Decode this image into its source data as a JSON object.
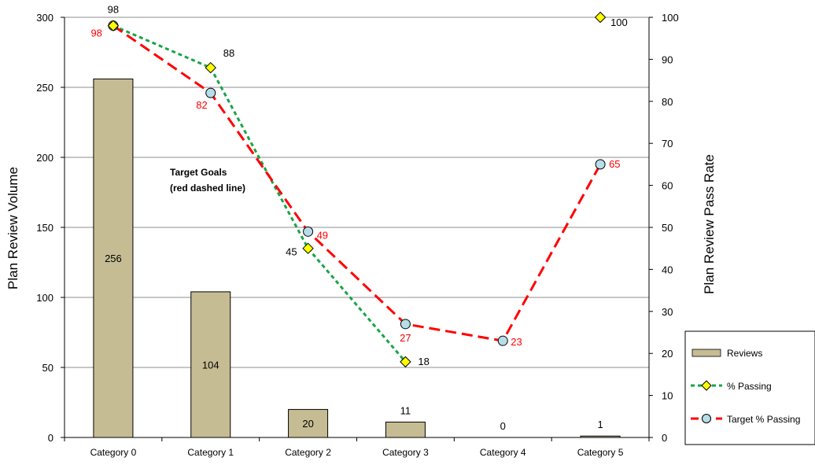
{
  "chart_data": {
    "type": "bar",
    "categories": [
      "Category 0",
      "Category 1",
      "Category 2",
      "Category 3",
      "Category 4",
      "Category 5"
    ],
    "series": [
      {
        "name": "Reviews",
        "type": "bar",
        "axis": "left",
        "values": [
          256,
          104,
          20,
          11,
          0,
          1
        ],
        "color": "#c6bc93"
      },
      {
        "name": "% Passing",
        "type": "line",
        "axis": "right",
        "values": [
          98,
          88,
          45,
          18,
          null,
          100
        ],
        "color": "#1aa34a",
        "marker_color": "#ffff00"
      },
      {
        "name": "Target % Passing",
        "type": "line",
        "axis": "right",
        "values": [
          98,
          82,
          49,
          27,
          23,
          65
        ],
        "color": "#ff0000",
        "marker_color": "#b7dde8"
      }
    ],
    "ylabel": "Plan Review Volume",
    "y2label": "Plan Review Pass Rate",
    "ylim": [
      0,
      300
    ],
    "y2lim": [
      0,
      100
    ],
    "yticks": [
      "0",
      "50",
      "100",
      "150",
      "200",
      "250",
      "300"
    ],
    "y2ticks": [
      "0",
      "10",
      "20",
      "30",
      "40",
      "50",
      "60",
      "70",
      "80",
      "90",
      "100"
    ],
    "annotation": [
      "Target Goals",
      "(red dashed line)"
    ],
    "legend": {
      "position": "bottom-right",
      "entries": [
        "Reviews",
        "% Passing",
        "Target % Passing"
      ]
    },
    "grid": true
  }
}
